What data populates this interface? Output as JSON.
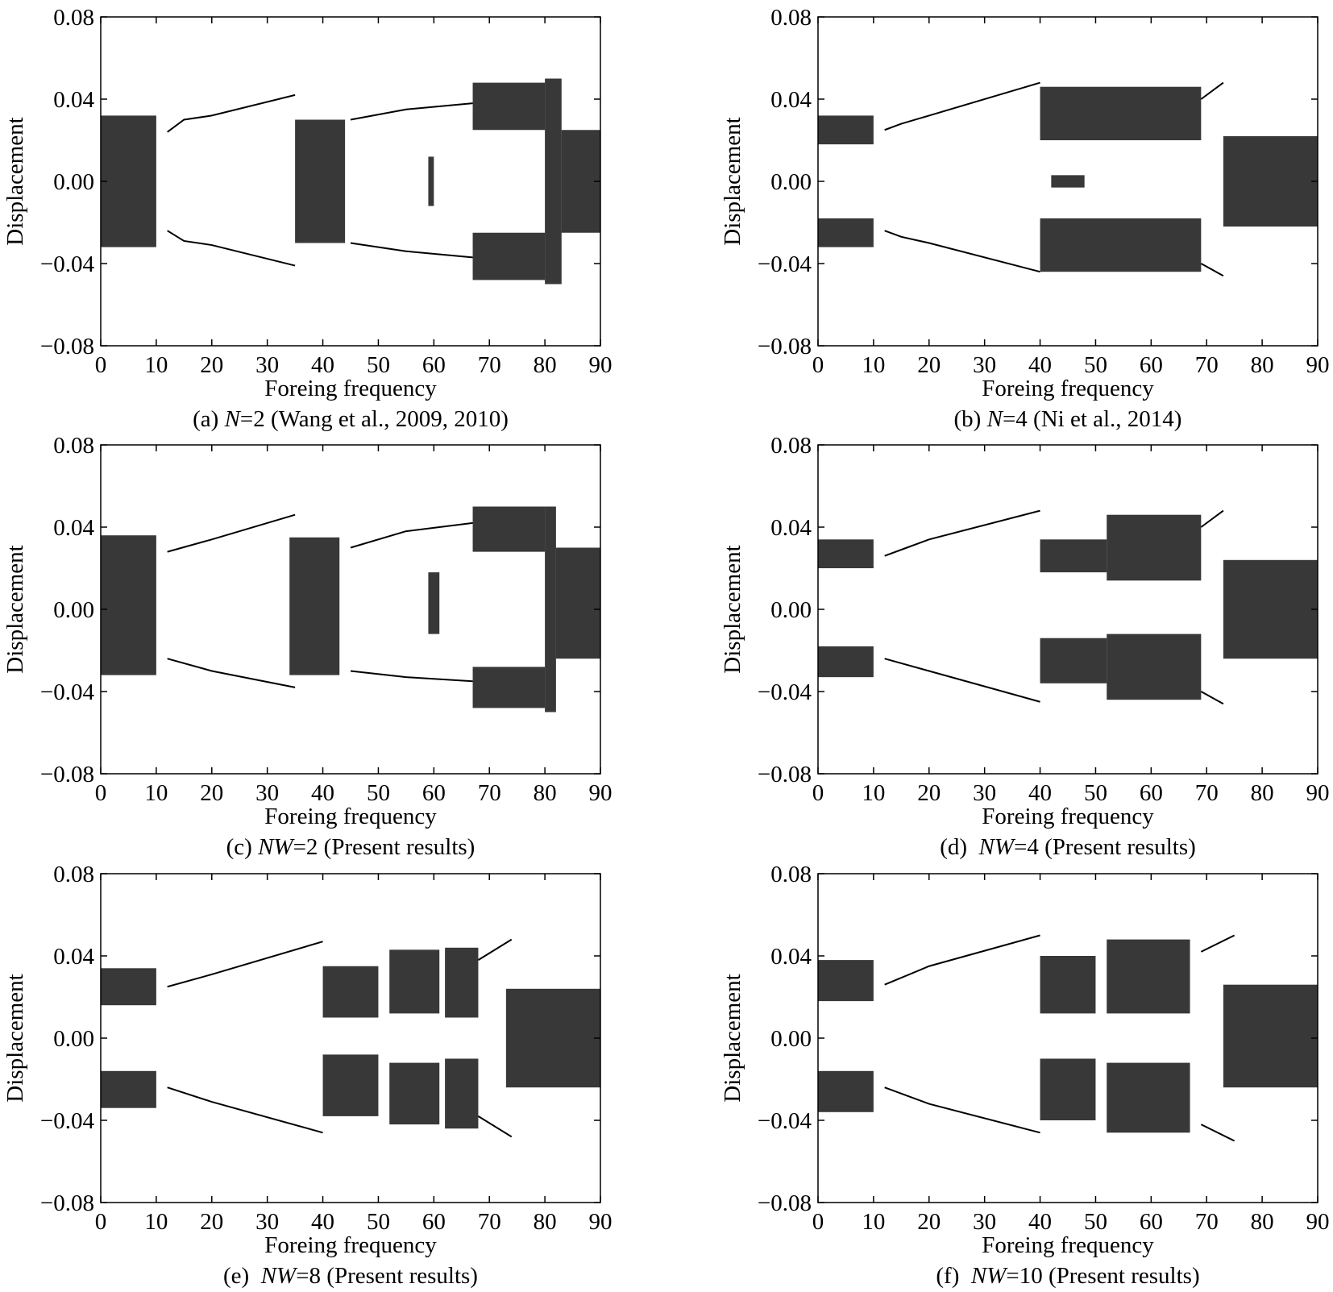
{
  "chart_data": [
    {
      "type": "scatter",
      "xlabel": "Foreing frequency",
      "ylabel": "Displacement",
      "caption": [
        "(a) ",
        "N",
        "=2 (Wang et al., 2009, 2010)"
      ],
      "xlim": [
        0,
        90
      ],
      "xticks": [
        0,
        10,
        20,
        30,
        40,
        50,
        60,
        70,
        80,
        90
      ],
      "ylim": [
        -0.08,
        0.08
      ],
      "yticks": [
        0.08,
        0.04,
        {
          "value": 0,
          "label": "0.00"
        },
        {
          "value": -0.04,
          "label": "−0.04"
        },
        {
          "value": -0.08,
          "label": "−0.08"
        }
      ],
      "color": "#000000",
      "series": [
        {
          "x": [
            12,
            15,
            20,
            35
          ],
          "y": [
            0.024,
            0.03,
            0.032,
            0.042
          ]
        },
        {
          "x": [
            12,
            15,
            20,
            35
          ],
          "y": [
            -0.024,
            -0.029,
            -0.031,
            -0.041
          ]
        },
        {
          "x": [
            45,
            55,
            67
          ],
          "y": [
            0.03,
            0.035,
            0.038
          ]
        },
        {
          "x": [
            45,
            55,
            67
          ],
          "y": [
            -0.03,
            -0.034,
            -0.037
          ]
        }
      ],
      "bands": [
        {
          "x": [
            0,
            10
          ],
          "y": [
            -0.032,
            0.032
          ]
        },
        {
          "x": [
            35,
            44
          ],
          "y": [
            -0.03,
            0.03
          ]
        },
        {
          "x": [
            59,
            60
          ],
          "y": [
            -0.012,
            0.012
          ]
        },
        {
          "x": [
            67,
            80
          ],
          "y": [
            0.025,
            0.048
          ]
        },
        {
          "x": [
            67,
            80
          ],
          "y": [
            -0.048,
            -0.025
          ]
        },
        {
          "x": [
            80,
            83
          ],
          "y": [
            -0.05,
            0.05
          ]
        },
        {
          "x": [
            83,
            90
          ],
          "y": [
            -0.025,
            0.025
          ]
        }
      ]
    },
    {
      "type": "scatter",
      "xlabel": "Foreing frequency",
      "ylabel": "Displacement",
      "caption": [
        "(b) ",
        "N",
        "=4 (Ni et al., 2014)"
      ],
      "xlim": [
        0,
        90
      ],
      "xticks": [
        0,
        10,
        20,
        30,
        40,
        50,
        60,
        70,
        80,
        90
      ],
      "ylim": [
        -0.08,
        0.08
      ],
      "yticks": [
        0.08,
        0.04,
        {
          "value": 0,
          "label": "0.00"
        },
        {
          "value": -0.04,
          "label": "−0.04"
        },
        {
          "value": -0.08,
          "label": "−0.08"
        }
      ],
      "color": "#000000",
      "series": [
        {
          "x": [
            12,
            15,
            20,
            40
          ],
          "y": [
            0.025,
            0.028,
            0.032,
            0.048
          ]
        },
        {
          "x": [
            12,
            15,
            20,
            40
          ],
          "y": [
            -0.024,
            -0.027,
            -0.03,
            -0.044
          ]
        },
        {
          "x": [
            69,
            73
          ],
          "y": [
            0.04,
            0.048
          ]
        },
        {
          "x": [
            69,
            73
          ],
          "y": [
            -0.04,
            -0.046
          ]
        }
      ],
      "bands": [
        {
          "x": [
            0,
            10
          ],
          "y": [
            0.018,
            0.032
          ]
        },
        {
          "x": [
            0,
            10
          ],
          "y": [
            -0.032,
            -0.018
          ]
        },
        {
          "x": [
            40,
            69
          ],
          "y": [
            0.02,
            0.046
          ]
        },
        {
          "x": [
            40,
            69
          ],
          "y": [
            -0.044,
            -0.018
          ]
        },
        {
          "x": [
            42,
            48
          ],
          "y": [
            -0.003,
            0.003
          ]
        },
        {
          "x": [
            73,
            90
          ],
          "y": [
            -0.022,
            0.022
          ]
        }
      ]
    },
    {
      "type": "scatter",
      "xlabel": "Foreing frequency",
      "ylabel": "Displacement",
      "caption": [
        "(c) ",
        "NW",
        "=2 (Present results)"
      ],
      "xlim": [
        0,
        90
      ],
      "xticks": [
        0,
        10,
        20,
        30,
        40,
        50,
        60,
        70,
        80,
        90
      ],
      "ylim": [
        -0.08,
        0.08
      ],
      "yticks": [
        0.08,
        0.04,
        {
          "value": 0,
          "label": "0.00"
        },
        {
          "value": -0.04,
          "label": "−0.04"
        },
        {
          "value": -0.08,
          "label": "−0.08"
        }
      ],
      "color": "#000000",
      "series": [
        {
          "x": [
            12,
            20,
            35
          ],
          "y": [
            0.028,
            0.034,
            0.046
          ]
        },
        {
          "x": [
            12,
            20,
            35
          ],
          "y": [
            -0.024,
            -0.03,
            -0.038
          ]
        },
        {
          "x": [
            45,
            55,
            67
          ],
          "y": [
            0.03,
            0.038,
            0.042
          ]
        },
        {
          "x": [
            45,
            55,
            67
          ],
          "y": [
            -0.03,
            -0.033,
            -0.035
          ]
        }
      ],
      "bands": [
        {
          "x": [
            0,
            10
          ],
          "y": [
            -0.032,
            0.036
          ]
        },
        {
          "x": [
            34,
            43
          ],
          "y": [
            -0.032,
            0.035
          ]
        },
        {
          "x": [
            59,
            61
          ],
          "y": [
            -0.012,
            0.018
          ]
        },
        {
          "x": [
            67,
            80
          ],
          "y": [
            0.028,
            0.05
          ]
        },
        {
          "x": [
            67,
            80
          ],
          "y": [
            -0.048,
            -0.028
          ]
        },
        {
          "x": [
            80,
            82
          ],
          "y": [
            -0.05,
            0.05
          ]
        },
        {
          "x": [
            82,
            90
          ],
          "y": [
            -0.024,
            0.03
          ]
        }
      ]
    },
    {
      "type": "scatter",
      "xlabel": "Foreing frequency",
      "ylabel": "Displacement",
      "caption": [
        "(d)  ",
        "NW",
        "=4 (Present results)"
      ],
      "xlim": [
        0,
        90
      ],
      "xticks": [
        0,
        10,
        20,
        30,
        40,
        50,
        60,
        70,
        80,
        90
      ],
      "ylim": [
        -0.08,
        0.08
      ],
      "yticks": [
        0.08,
        0.04,
        {
          "value": 0,
          "label": "0.00"
        },
        {
          "value": -0.04,
          "label": "−0.04"
        },
        {
          "value": -0.08,
          "label": "−0.08"
        }
      ],
      "color": "#000000",
      "series": [
        {
          "x": [
            12,
            16,
            20,
            40
          ],
          "y": [
            0.026,
            0.03,
            0.034,
            0.048
          ]
        },
        {
          "x": [
            12,
            20,
            40
          ],
          "y": [
            -0.024,
            -0.03,
            -0.045
          ]
        },
        {
          "x": [
            69,
            73
          ],
          "y": [
            0.04,
            0.048
          ]
        },
        {
          "x": [
            69,
            73
          ],
          "y": [
            -0.04,
            -0.046
          ]
        }
      ],
      "bands": [
        {
          "x": [
            0,
            10
          ],
          "y": [
            0.02,
            0.034
          ]
        },
        {
          "x": [
            0,
            10
          ],
          "y": [
            -0.033,
            -0.018
          ]
        },
        {
          "x": [
            40,
            52
          ],
          "y": [
            0.018,
            0.034
          ]
        },
        {
          "x": [
            40,
            52
          ],
          "y": [
            -0.036,
            -0.014
          ]
        },
        {
          "x": [
            52,
            69
          ],
          "y": [
            0.014,
            0.046
          ]
        },
        {
          "x": [
            52,
            69
          ],
          "y": [
            -0.044,
            -0.012
          ]
        },
        {
          "x": [
            73,
            90
          ],
          "y": [
            -0.024,
            0.024
          ]
        }
      ]
    },
    {
      "type": "scatter",
      "xlabel": "Foreing frequency",
      "ylabel": "Displacement",
      "caption": [
        "(e)  ",
        "NW",
        "=8 (Present results)"
      ],
      "xlim": [
        0,
        90
      ],
      "xticks": [
        0,
        10,
        20,
        30,
        40,
        50,
        60,
        70,
        80,
        90
      ],
      "ylim": [
        -0.08,
        0.08
      ],
      "yticks": [
        0.08,
        0.04,
        {
          "value": 0,
          "label": "0.00"
        },
        {
          "value": -0.04,
          "label": "−0.04"
        },
        {
          "value": -0.08,
          "label": "−0.08"
        }
      ],
      "color": "#000000",
      "series": [
        {
          "x": [
            12,
            20,
            40
          ],
          "y": [
            0.025,
            0.031,
            0.047
          ]
        },
        {
          "x": [
            12,
            20,
            40
          ],
          "y": [
            -0.024,
            -0.031,
            -0.046
          ]
        },
        {
          "x": [
            68,
            74
          ],
          "y": [
            0.038,
            0.048
          ]
        },
        {
          "x": [
            68,
            74
          ],
          "y": [
            -0.038,
            -0.048
          ]
        }
      ],
      "bands": [
        {
          "x": [
            0,
            10
          ],
          "y": [
            0.016,
            0.034
          ]
        },
        {
          "x": [
            0,
            10
          ],
          "y": [
            -0.034,
            -0.016
          ]
        },
        {
          "x": [
            40,
            50
          ],
          "y": [
            0.01,
            0.035
          ]
        },
        {
          "x": [
            40,
            50
          ],
          "y": [
            -0.038,
            -0.008
          ]
        },
        {
          "x": [
            52,
            61
          ],
          "y": [
            0.012,
            0.043
          ]
        },
        {
          "x": [
            52,
            61
          ],
          "y": [
            -0.042,
            -0.012
          ]
        },
        {
          "x": [
            62,
            68
          ],
          "y": [
            0.01,
            0.044
          ]
        },
        {
          "x": [
            62,
            68
          ],
          "y": [
            -0.044,
            -0.01
          ]
        },
        {
          "x": [
            73,
            90
          ],
          "y": [
            -0.024,
            0.024
          ]
        }
      ]
    },
    {
      "type": "scatter",
      "xlabel": "Foreing frequency",
      "ylabel": "Displacement",
      "caption": [
        "(f)  ",
        "NW",
        "=10 (Present results)"
      ],
      "xlim": [
        0,
        90
      ],
      "xticks": [
        0,
        10,
        20,
        30,
        40,
        50,
        60,
        70,
        80,
        90
      ],
      "ylim": [
        -0.08,
        0.08
      ],
      "yticks": [
        0.08,
        0.04,
        {
          "value": 0,
          "label": "0.00"
        },
        {
          "value": -0.04,
          "label": "−0.04"
        },
        {
          "value": -0.08,
          "label": "−0.08"
        }
      ],
      "color": "#000000",
      "series": [
        {
          "x": [
            12,
            20,
            40
          ],
          "y": [
            0.026,
            0.035,
            0.05
          ]
        },
        {
          "x": [
            12,
            20,
            40
          ],
          "y": [
            -0.024,
            -0.032,
            -0.046
          ]
        },
        {
          "x": [
            69,
            75
          ],
          "y": [
            0.042,
            0.05
          ]
        },
        {
          "x": [
            69,
            75
          ],
          "y": [
            -0.042,
            -0.05
          ]
        }
      ],
      "bands": [
        {
          "x": [
            0,
            10
          ],
          "y": [
            0.018,
            0.038
          ]
        },
        {
          "x": [
            0,
            10
          ],
          "y": [
            -0.036,
            -0.016
          ]
        },
        {
          "x": [
            40,
            50
          ],
          "y": [
            0.012,
            0.04
          ]
        },
        {
          "x": [
            40,
            50
          ],
          "y": [
            -0.04,
            -0.01
          ]
        },
        {
          "x": [
            52,
            67
          ],
          "y": [
            0.012,
            0.048
          ]
        },
        {
          "x": [
            52,
            67
          ],
          "y": [
            -0.046,
            -0.012
          ]
        },
        {
          "x": [
            73,
            90
          ],
          "y": [
            -0.024,
            0.026
          ]
        }
      ]
    }
  ]
}
